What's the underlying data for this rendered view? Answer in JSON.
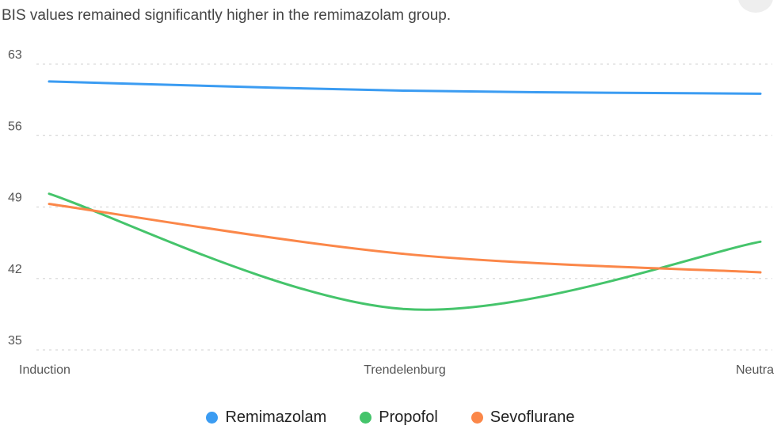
{
  "subtitle": "BIS values remained significantly higher in the remimazolam group.",
  "chart_data": {
    "type": "line",
    "title": "",
    "xlabel": "",
    "ylabel": "",
    "categories": [
      "Induction",
      "Trendelenburg",
      "Neutral"
    ],
    "category_tick_labels": [
      "Induction",
      "Trendelenburg",
      "Neutra"
    ],
    "y_ticks": [
      35,
      42,
      49,
      56,
      63
    ],
    "ylim": [
      35,
      63
    ],
    "grid": true,
    "legend_position": "bottom",
    "series": [
      {
        "name": "Remimazolam",
        "color": "#3b9cf2",
        "values": [
          61.3,
          60.4,
          60.1
        ]
      },
      {
        "name": "Propofol",
        "color": "#45c46b",
        "values": [
          50.3,
          39.0,
          45.6
        ]
      },
      {
        "name": "Sevoflurane",
        "color": "#fb8749",
        "values": [
          49.3,
          44.4,
          42.6
        ]
      }
    ]
  }
}
